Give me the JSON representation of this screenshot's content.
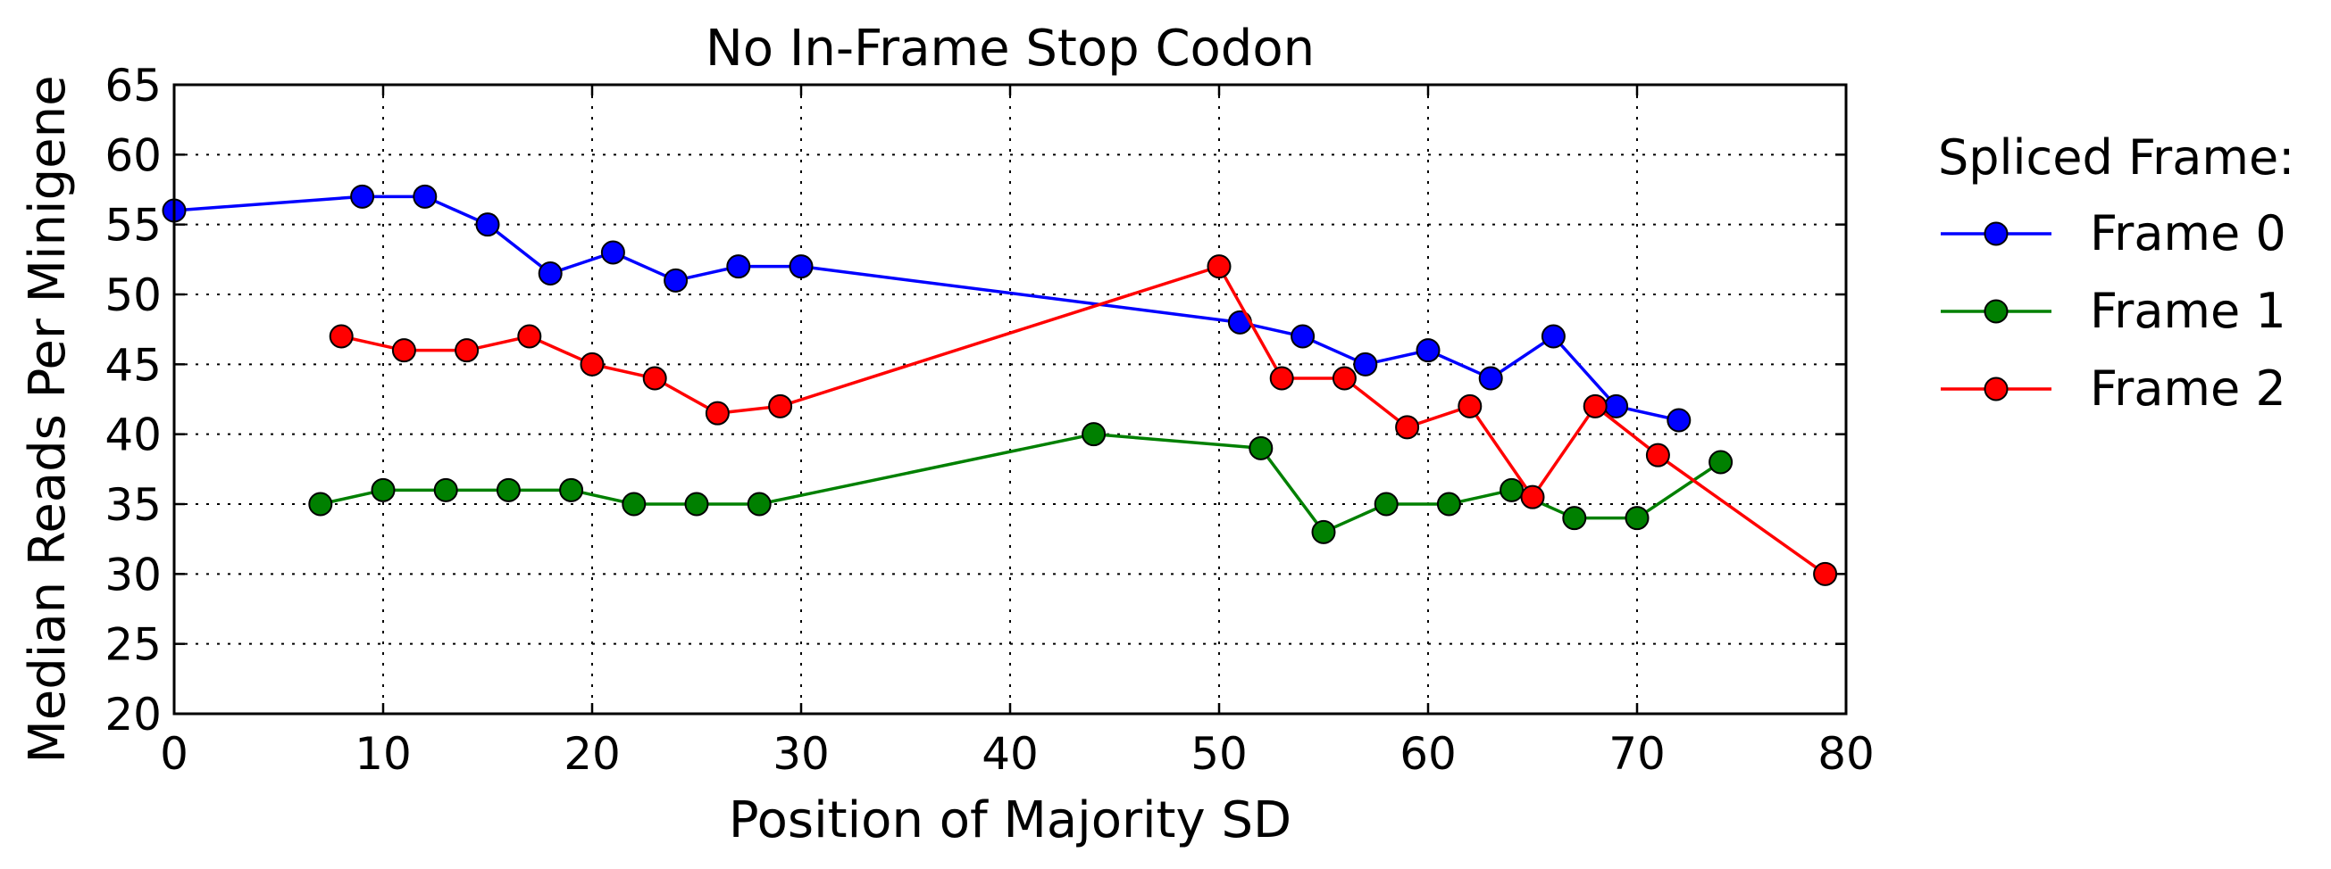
{
  "chart_data": {
    "type": "line",
    "title": "No In-Frame Stop Codon",
    "xlabel": "Position of Majority SD",
    "ylabel": "Median Reads Per Minigene",
    "xlim": [
      0,
      80
    ],
    "ylim": [
      20,
      65
    ],
    "xticks": [
      0,
      10,
      20,
      30,
      40,
      50,
      60,
      70,
      80
    ],
    "yticks": [
      20,
      25,
      30,
      35,
      40,
      45,
      50,
      55,
      60,
      65
    ],
    "grid": true,
    "legend": {
      "title": "Spliced Frame:",
      "placement": "outside-right"
    },
    "series": [
      {
        "name": "Frame 0",
        "color": "#0000ff",
        "x": [
          0,
          9,
          12,
          15,
          18,
          21,
          24,
          27,
          30,
          51,
          54,
          57,
          60,
          63,
          66,
          69,
          72
        ],
        "y": [
          56,
          57,
          57,
          55,
          51.5,
          53,
          51,
          52,
          52,
          48,
          47,
          45,
          46,
          44,
          47,
          42,
          41
        ]
      },
      {
        "name": "Frame 1",
        "color": "#008000",
        "x": [
          7,
          10,
          13,
          16,
          19,
          22,
          25,
          28,
          44,
          52,
          55,
          58,
          61,
          64,
          67,
          70,
          74
        ],
        "y": [
          35,
          36,
          36,
          36,
          36,
          35,
          35,
          35,
          40,
          39,
          33,
          35,
          35,
          36,
          34,
          34,
          38
        ]
      },
      {
        "name": "Frame 2",
        "color": "#ff0000",
        "x": [
          8,
          11,
          14,
          17,
          20,
          23,
          26,
          29,
          50,
          53,
          56,
          59,
          62,
          65,
          68,
          71,
          79
        ],
        "y": [
          47,
          46,
          46,
          47,
          45,
          44,
          41.5,
          42,
          52,
          44,
          44,
          40.5,
          42,
          35.5,
          42,
          38.5,
          30
        ]
      }
    ]
  }
}
